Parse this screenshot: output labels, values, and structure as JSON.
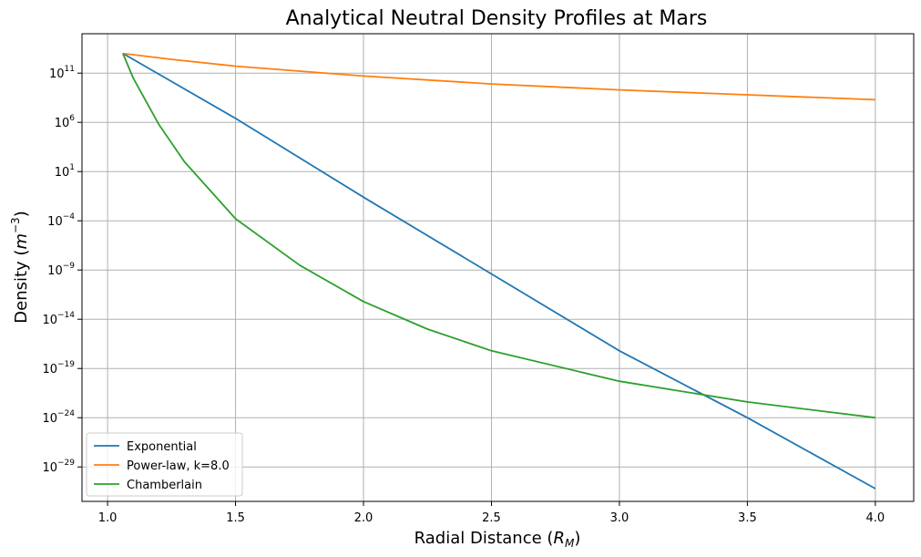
{
  "chart_data": {
    "type": "line",
    "title": "Analytical Neutral Density Profiles at Mars",
    "xlabel": {
      "prefix": "Radial Distance (",
      "symbol": "R",
      "subscript": "M",
      "suffix": ")"
    },
    "ylabel": {
      "prefix": "Density (",
      "symbol": "m",
      "superscript": "−3",
      "suffix": ")"
    },
    "x_scale": "linear",
    "y_scale": "log",
    "xlim": [
      0.9,
      4.15
    ],
    "ylim_log10": [
      -32.5,
      15.0
    ],
    "grid": true,
    "legend_position": "lower-left",
    "x_ticks": [
      {
        "value": 1.0,
        "label": "1.0"
      },
      {
        "value": 1.5,
        "label": "1.5"
      },
      {
        "value": 2.0,
        "label": "2.0"
      },
      {
        "value": 2.5,
        "label": "2.5"
      },
      {
        "value": 3.0,
        "label": "3.0"
      },
      {
        "value": 3.5,
        "label": "3.5"
      },
      {
        "value": 4.0,
        "label": "4.0"
      }
    ],
    "y_ticks": [
      {
        "exp": 11,
        "base": "10",
        "power": "11"
      },
      {
        "exp": 6,
        "base": "10",
        "power": "6"
      },
      {
        "exp": 1,
        "base": "10",
        "power": "1"
      },
      {
        "exp": -4,
        "base": "10",
        "power": "−4"
      },
      {
        "exp": -9,
        "base": "10",
        "power": "−9"
      },
      {
        "exp": -14,
        "base": "10",
        "power": "−14"
      },
      {
        "exp": -19,
        "base": "10",
        "power": "−19"
      },
      {
        "exp": -24,
        "base": "10",
        "power": "−24"
      },
      {
        "exp": -29,
        "base": "10",
        "power": "−29"
      }
    ],
    "series": [
      {
        "name": "Exponential",
        "color": "#1f77b4",
        "x": [
          1.06,
          1.5,
          2.0,
          2.5,
          3.0,
          3.5,
          4.0
        ],
        "y_log10": [
          13.0,
          6.4,
          -1.6,
          -9.4,
          -17.2,
          -24.0,
          -31.2
        ]
      },
      {
        "name": "Power-law, k=8.0",
        "color": "#ff7f0e",
        "x": [
          1.06,
          1.25,
          1.5,
          1.75,
          2.0,
          2.5,
          3.0,
          3.5,
          4.0
        ],
        "y_log10": [
          13.0,
          12.4,
          11.7,
          11.2,
          10.7,
          9.9,
          9.3,
          8.8,
          8.3
        ]
      },
      {
        "name": "Chamberlain",
        "color": "#2ca02c",
        "x": [
          1.06,
          1.1,
          1.2,
          1.3,
          1.5,
          1.75,
          2.0,
          2.25,
          2.5,
          3.0,
          3.5,
          4.0
        ],
        "y_log10": [
          13.0,
          10.5,
          5.8,
          2.0,
          -3.8,
          -8.5,
          -12.2,
          -15.0,
          -17.2,
          -20.3,
          -22.4,
          -24.0
        ]
      }
    ]
  }
}
